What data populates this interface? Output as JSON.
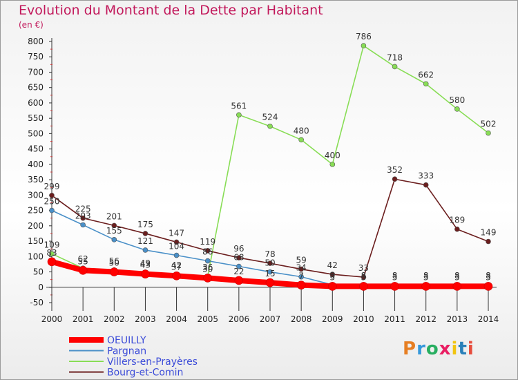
{
  "header": {
    "title": "Evolution du Montant de la Dette par Habitant",
    "unit": "(en €)"
  },
  "logo": {
    "text": "Proxiti",
    "colors": [
      "#e67e22",
      "#3498db",
      "#27ae60",
      "#e91e63",
      "#f1c40f",
      "#2980b9",
      "#e74c3c"
    ]
  },
  "chart_data": {
    "type": "line",
    "title": "Evolution du Montant de la Dette par Habitant",
    "ylabel": "(en €)",
    "x": [
      2000,
      2001,
      2002,
      2003,
      2004,
      2005,
      2006,
      2007,
      2008,
      2009,
      2010,
      2011,
      2012,
      2013,
      2014
    ],
    "ylim": [
      -50,
      800
    ],
    "yticks": [
      -50,
      0,
      50,
      100,
      150,
      200,
      250,
      300,
      350,
      400,
      450,
      500,
      550,
      600,
      650,
      700,
      750,
      800
    ],
    "grid": false,
    "legend_position": "bottom-left",
    "series": [
      {
        "name": "OEUILLY",
        "color": "#ff0000",
        "values": [
          83,
          55,
          50,
          43,
          37,
          30,
          22,
          15,
          7,
          3,
          3,
          3,
          3,
          3,
          3
        ],
        "labels": true
      },
      {
        "name": "Pargnan",
        "color": "#4a90c8",
        "values": [
          250,
          203,
          155,
          121,
          104,
          86,
          68,
          50,
          34,
          8,
          8,
          8,
          8,
          8,
          8
        ],
        "labels": true
      },
      {
        "name": "Villers-en-Prayères",
        "color": "#88dd55",
        "values": [
          109,
          62,
          56,
          49,
          42,
          36,
          561,
          524,
          480,
          400,
          786,
          718,
          662,
          580,
          502
        ],
        "labels": true
      },
      {
        "name": "Bourg-et-Comin",
        "color": "#6b1e1e",
        "values": [
          299,
          225,
          201,
          175,
          147,
          119,
          96,
          78,
          59,
          42,
          33,
          352,
          333,
          189,
          149
        ],
        "labels": true
      }
    ]
  }
}
